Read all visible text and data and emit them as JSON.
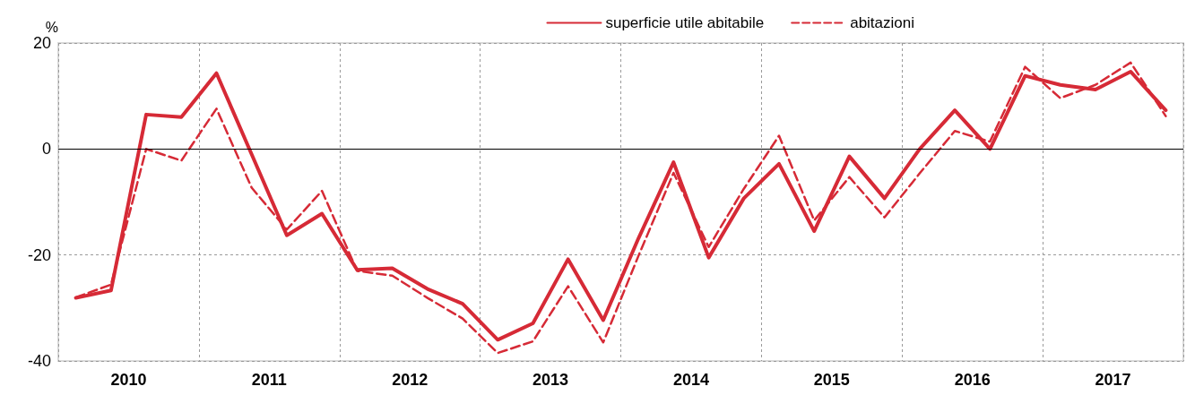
{
  "chart_data": {
    "type": "line",
    "ylabel": "%",
    "x": [
      2010.125,
      2010.375,
      2010.625,
      2010.875,
      2011.125,
      2011.375,
      2011.625,
      2011.875,
      2012.125,
      2012.375,
      2012.625,
      2012.875,
      2013.125,
      2013.375,
      2013.625,
      2013.875,
      2014.125,
      2014.375,
      2014.625,
      2014.875,
      2015.125,
      2015.375,
      2015.625,
      2015.875,
      2016.125,
      2016.375,
      2016.625,
      2016.875,
      2017.125,
      2017.375,
      2017.625,
      2017.875
    ],
    "xlim": [
      2010,
      2018
    ],
    "xticks": [
      {
        "value": 2010,
        "label": null
      },
      {
        "value": 2010.5,
        "label": "2010"
      },
      {
        "value": 2011,
        "label": null
      },
      {
        "value": 2011.5,
        "label": "2011"
      },
      {
        "value": 2012,
        "label": null
      },
      {
        "value": 2012.5,
        "label": "2012"
      },
      {
        "value": 2013,
        "label": null
      },
      {
        "value": 2013.5,
        "label": "2013"
      },
      {
        "value": 2014,
        "label": null
      },
      {
        "value": 2014.5,
        "label": "2014"
      },
      {
        "value": 2015,
        "label": null
      },
      {
        "value": 2015.5,
        "label": "2015"
      },
      {
        "value": 2016,
        "label": null
      },
      {
        "value": 2016.5,
        "label": "2016"
      },
      {
        "value": 2017,
        "label": null
      },
      {
        "value": 2017.5,
        "label": "2017"
      },
      {
        "value": 2018,
        "label": null
      }
    ],
    "series": [
      {
        "name": "superficie utile abitabile",
        "color": "#d62a36",
        "line_style": "solid",
        "values": [
          -28.1,
          -26.7,
          6.5,
          6.0,
          14.3,
          -1,
          -16.3,
          -12.2,
          -22.8,
          -22.5,
          -26.4,
          -29.2,
          -36,
          -32.9,
          -20.8,
          -32.3,
          -16.9,
          -2.5,
          -20.5,
          -9.3,
          -2.8,
          -15.5,
          -1.4,
          -9.3,
          0,
          7.3,
          0,
          13.8,
          12.1,
          11.2,
          14.6,
          7.3
        ]
      },
      {
        "name": "abitazioni",
        "color": "#d62a36",
        "line_style": "dashed",
        "values": [
          -28,
          -25.6,
          0,
          -2.2,
          7.6,
          -7.3,
          -15.2,
          -7.9,
          -23,
          -23.9,
          -28.1,
          -32,
          -38.5,
          -36.3,
          -25.9,
          -36.5,
          -20.2,
          -4.5,
          -18.5,
          -7.5,
          2.5,
          -13.5,
          -5.3,
          -12.9,
          -4.6,
          3.4,
          1.4,
          15.5,
          9.6,
          12.1,
          16.3,
          6.2
        ]
      }
    ],
    "ylim": [
      -40,
      20
    ],
    "yticks": [
      -40,
      -20,
      0,
      20
    ],
    "grid": true,
    "legend": "top right",
    "marker": "none",
    "ref_lines": [
      {
        "axis": "y",
        "value": 0,
        "color": "#000000"
      }
    ]
  }
}
